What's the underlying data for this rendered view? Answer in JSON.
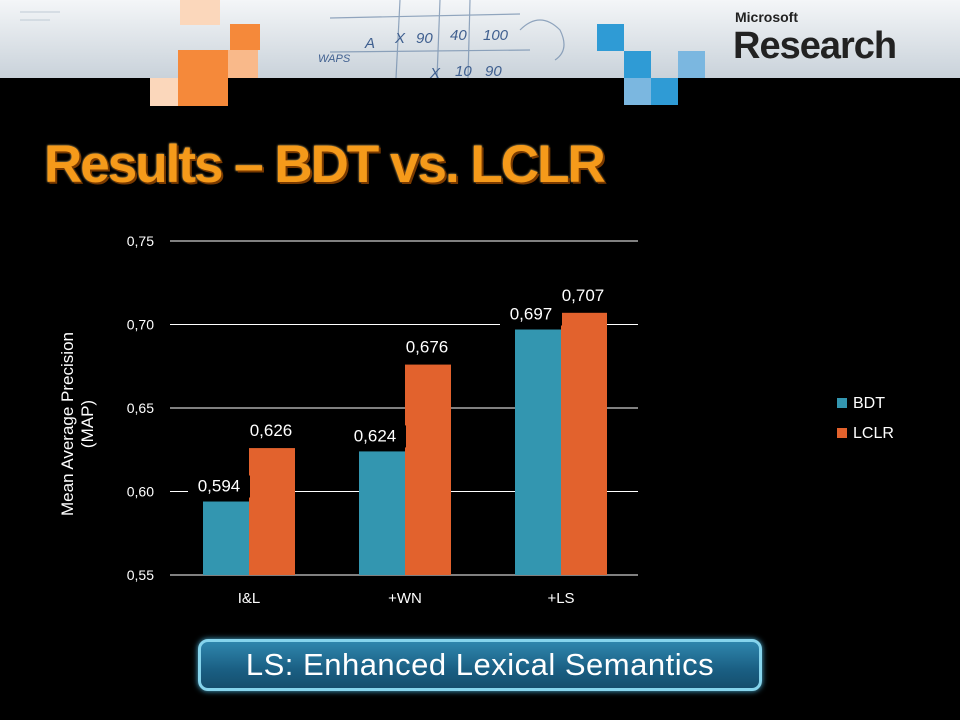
{
  "banner": {
    "brand_small": "Microsoft",
    "brand_large": "Research",
    "board_words": [
      "A",
      "X",
      "90",
      "40",
      "100",
      "X",
      "10",
      "90",
      "WAPS"
    ]
  },
  "slide": {
    "title": "Results – BDT vs. LCLR"
  },
  "callout": {
    "text": "LS: Enhanced Lexical Semantics"
  },
  "colors": {
    "bdt": "#3396b0",
    "lclr": "#e2622d",
    "title": "#f59a1a",
    "orange_tile": "#f5893a",
    "blue_tile": "#2f9bd5"
  },
  "chart_data": {
    "type": "bar",
    "categories": [
      "I&L",
      "+WN",
      "+LS"
    ],
    "series": [
      {
        "name": "BDT",
        "values": [
          0.594,
          0.624,
          0.697
        ],
        "labels": [
          "0,594",
          "0,624",
          "0,697"
        ]
      },
      {
        "name": "LCLR",
        "values": [
          0.626,
          0.676,
          0.707
        ],
        "labels": [
          "0,626",
          "0,676",
          "0,707"
        ]
      }
    ],
    "ylabel": "Mean Average Precision (MAP)",
    "ylim": [
      0.55,
      0.75
    ],
    "yticks": [
      0.55,
      0.6,
      0.65,
      0.7,
      0.75
    ],
    "ytick_labels": [
      "0,55",
      "0,60",
      "0,65",
      "0,70",
      "0,75"
    ],
    "grid": true,
    "legend": "right"
  }
}
